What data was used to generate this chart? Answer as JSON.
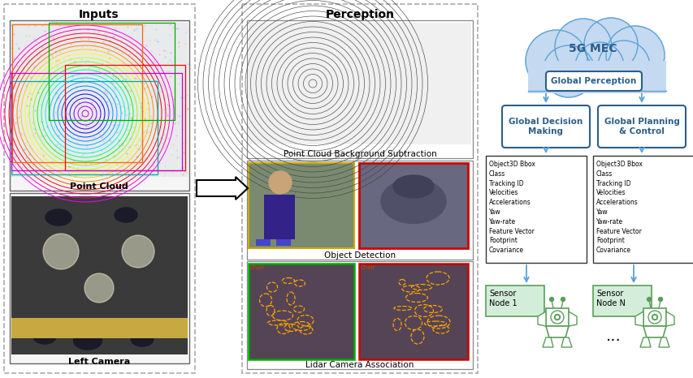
{
  "bg_color": "#ffffff",
  "inputs_title": "Inputs",
  "perception_title": "Perception",
  "point_cloud_label": "Point Cloud",
  "left_camera_label": "Left Camera",
  "pcl_background_label": "Point Cloud Background Subtraction",
  "object_detection_label": "Object Detection",
  "lidar_camera_label": "Lidar Camera Association",
  "mec_title": "5G MEC",
  "global_perception_label": "Global Perception",
  "global_decision_label": "Global Decision\nMaking",
  "global_planning_label": "Global Planning\n& Control",
  "object_attrs": [
    "Object3D Bbox",
    "Class",
    "Tracking ID",
    "Velocities",
    "Accelerations",
    "Yaw",
    "Yaw-rate",
    "Feature Vector",
    "Footprint",
    "Covariance"
  ],
  "sensor_node1_label": "Sensor\nNode 1",
  "sensor_nodeN_label": "Sensor\nNode N",
  "arrow_color": "#5ba3d9",
  "box_border_color": "#2c5f8a",
  "cloud_color": "#c5d9f1",
  "cloud_border_color": "#5ba3d9",
  "sensor_green": "#5a9e5a",
  "sensor_box_color": "#d4edda",
  "panel_dash_color": "#aaaaaa",
  "panel_bg": "#ffffff"
}
